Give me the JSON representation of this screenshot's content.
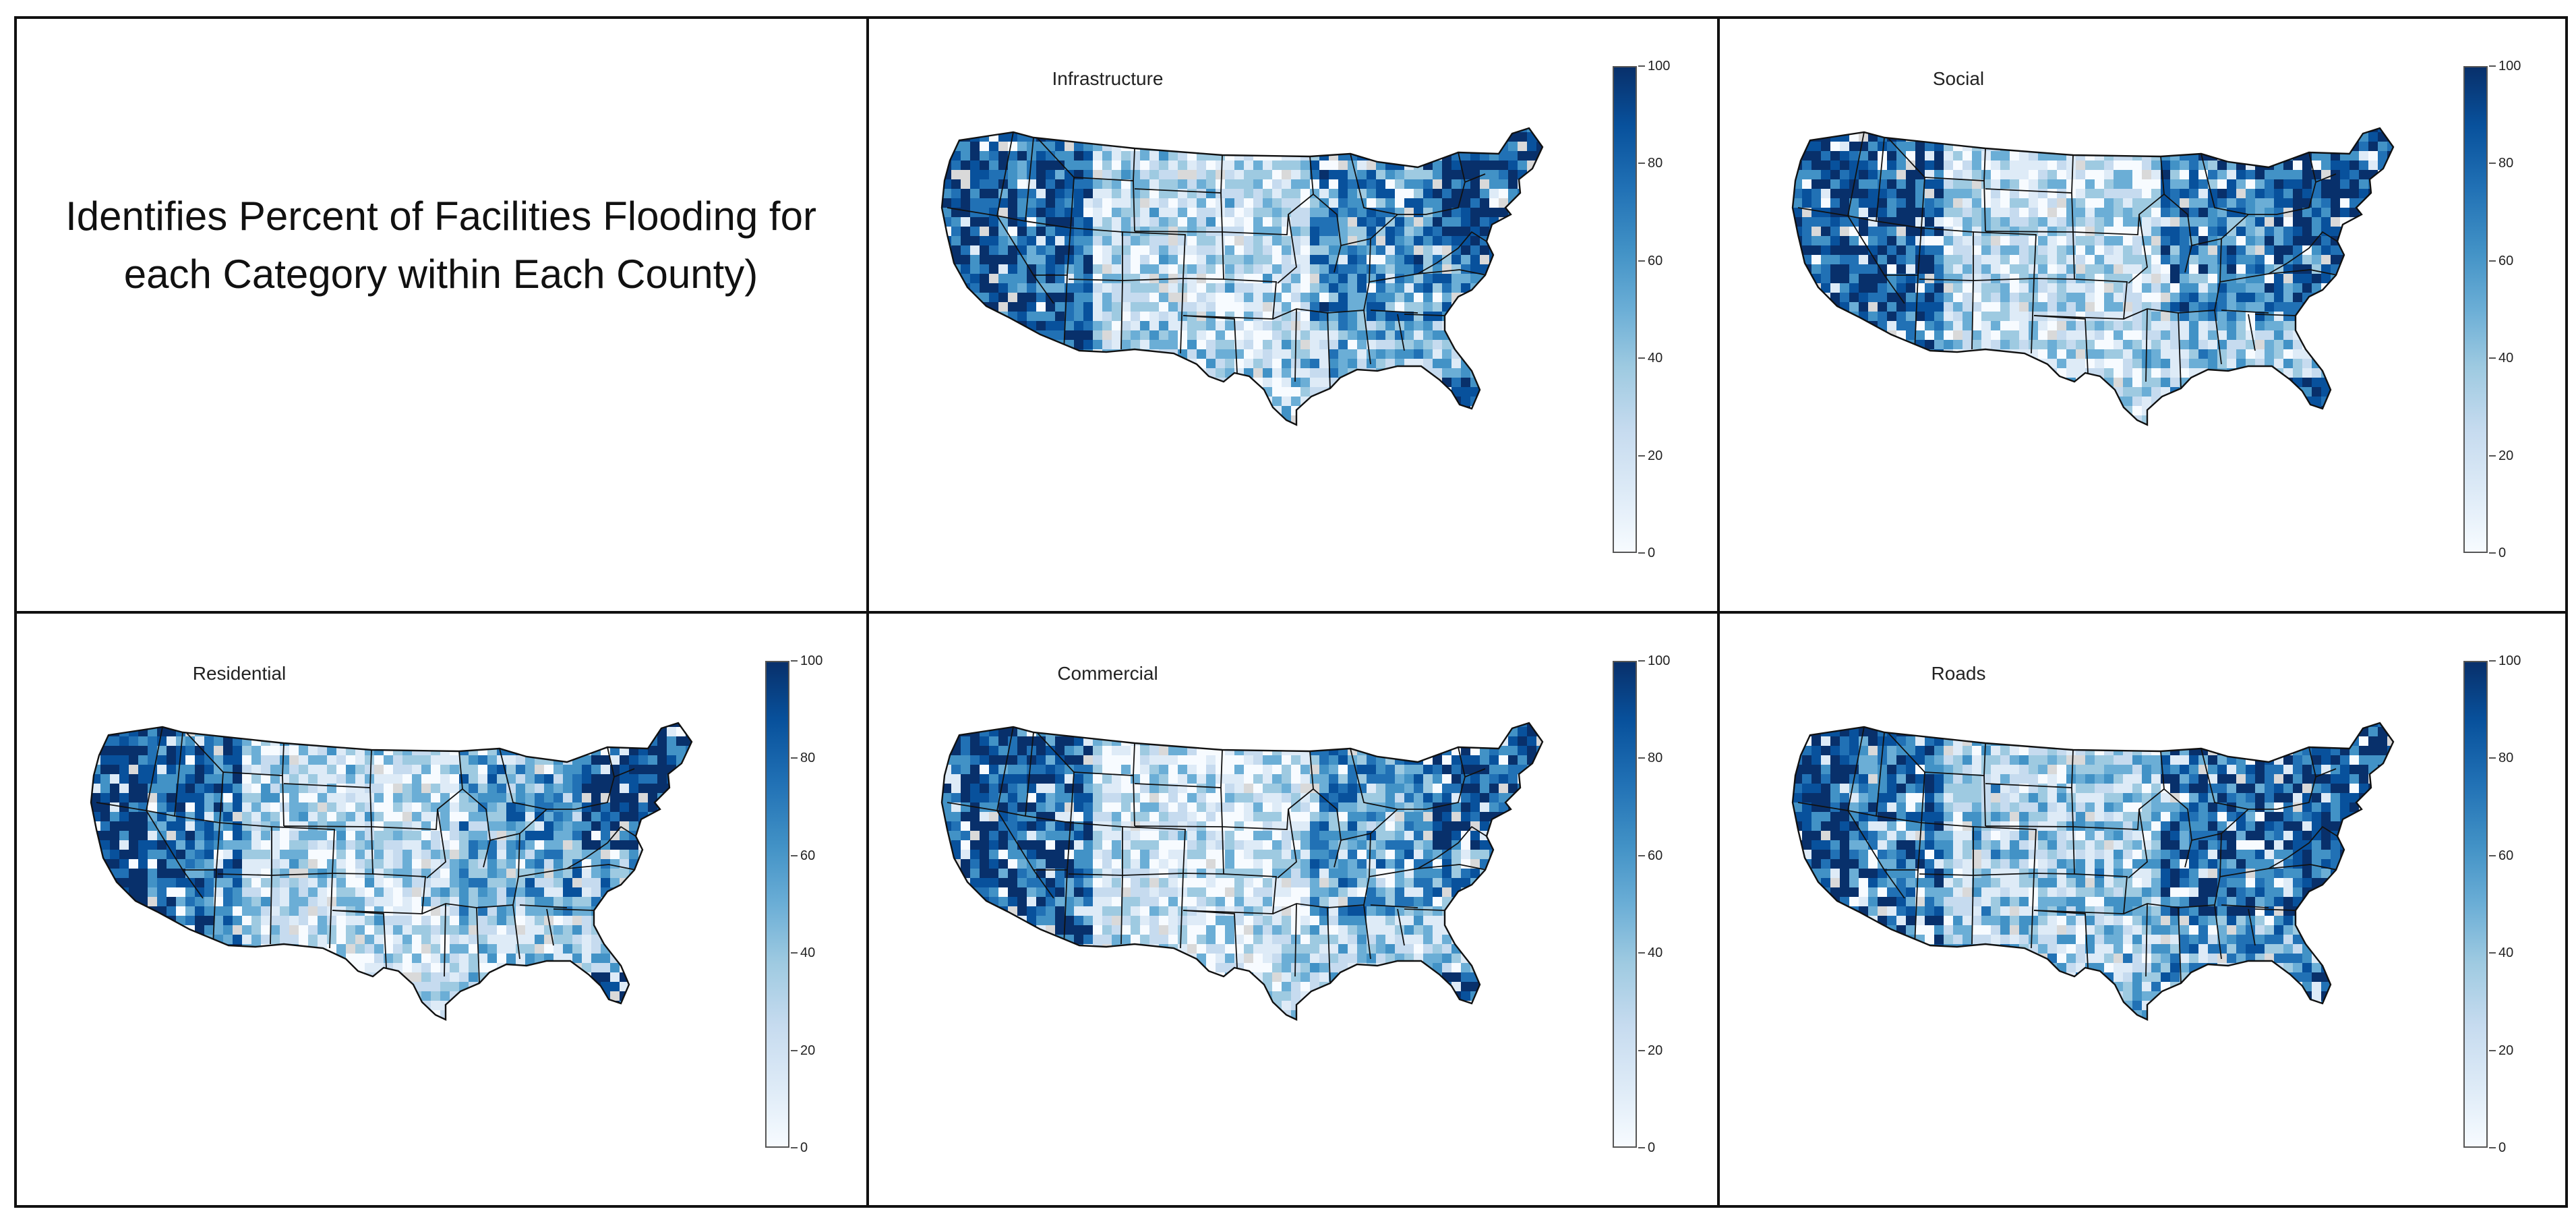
{
  "figure": {
    "description": "Identifies Percent of Facilities Flooding for each Category within Each County)"
  },
  "colorbar": {
    "ticks": [
      "100",
      "80",
      "60",
      "40",
      "20",
      "0"
    ],
    "min": 0,
    "max": 100,
    "colormap": [
      "#f7fbff",
      "#deebf7",
      "#c6dbef",
      "#9ecae1",
      "#6baed6",
      "#4292c6",
      "#2171b5",
      "#08519c",
      "#08306b"
    ]
  },
  "panels": [
    {
      "title": "Infrastructure"
    },
    {
      "title": "Social"
    },
    {
      "title": "Residential"
    },
    {
      "title": "Commercial"
    },
    {
      "title": "Roads"
    }
  ],
  "colors": {
    "no_data": "#d9d9d9",
    "border": "#111111"
  }
}
